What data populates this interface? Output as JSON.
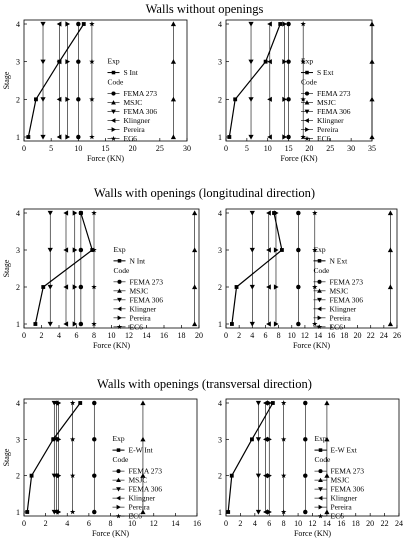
{
  "sections": [
    {
      "title": "Walls without openings"
    },
    {
      "title": "Walls with openings (longitudinal direction)"
    },
    {
      "title": "Walls with openings (transversal direction)"
    }
  ],
  "chart_data": [
    {
      "type": "line",
      "ylabel": "Stage",
      "xlabel": "Force (KN)",
      "xlim": [
        0,
        30
      ],
      "xticks": [
        0,
        5,
        10,
        15,
        20,
        25,
        30
      ],
      "ylim": [
        1,
        4
      ],
      "yticks": [
        1,
        2,
        3,
        4
      ],
      "legend_title": "Exp",
      "legend_code": "Code",
      "legend_position": "center-right",
      "exp": {
        "name": "S Int",
        "values": [
          [
            0.8,
            1
          ],
          [
            2.2,
            2
          ],
          [
            6.5,
            3
          ],
          [
            11,
            4
          ]
        ]
      },
      "codes": [
        {
          "name": "FEMA 273",
          "marker": "circle",
          "x": 10
        },
        {
          "name": "MSJC",
          "marker": "triangle-up",
          "x": 27.5
        },
        {
          "name": "FEMA 306",
          "marker": "triangle-down",
          "x": 3.5
        },
        {
          "name": "Klingner",
          "marker": "triangle-left",
          "x": 6.5
        },
        {
          "name": "Pereira",
          "marker": "triangle-right",
          "x": 8.0
        },
        {
          "name": "EC6",
          "marker": "star",
          "x": 12.5
        }
      ]
    },
    {
      "type": "line",
      "ylabel": "",
      "xlabel": "Force (KN)",
      "xlim": [
        0,
        35
      ],
      "xticks": [
        0,
        5,
        10,
        15,
        20,
        25,
        30,
        35
      ],
      "ylim": [
        1,
        4
      ],
      "yticks": [
        1,
        2,
        3,
        4
      ],
      "legend_title": "Exp",
      "legend_code": "Code",
      "legend_position": "center-right",
      "exp": {
        "name": "S Ext",
        "values": [
          [
            0.8,
            1
          ],
          [
            2.2,
            2
          ],
          [
            9.5,
            3
          ],
          [
            13,
            4
          ]
        ]
      },
      "codes": [
        {
          "name": "FEMA 273",
          "marker": "circle",
          "x": 15
        },
        {
          "name": "MSJC",
          "marker": "triangle-up",
          "x": 35
        },
        {
          "name": "FEMA 306",
          "marker": "triangle-down",
          "x": 6
        },
        {
          "name": "Klingner",
          "marker": "triangle-left",
          "x": 10.5
        },
        {
          "name": "Pereira",
          "marker": "triangle-right",
          "x": 14
        },
        {
          "name": "EC6",
          "marker": "star",
          "x": 18.5
        }
      ]
    },
    {
      "type": "line",
      "ylabel": "Stage",
      "xlabel": "Force (KN)",
      "xlim": [
        0,
        20
      ],
      "xticks": [
        0,
        2,
        4,
        6,
        8,
        10,
        12,
        14,
        16,
        18,
        20
      ],
      "ylim": [
        1,
        4
      ],
      "yticks": [
        1,
        2,
        3,
        4
      ],
      "legend_title": "Exp",
      "legend_code": "Code",
      "legend_position": "center-right",
      "exp": {
        "name": "N Int",
        "values": [
          [
            1.3,
            1
          ],
          [
            2.2,
            2
          ],
          [
            7.8,
            3
          ],
          [
            6.5,
            4
          ]
        ]
      },
      "codes": [
        {
          "name": "FEMA 273",
          "marker": "circle",
          "x": 6.5
        },
        {
          "name": "MSJC",
          "marker": "triangle-up",
          "x": 19.5
        },
        {
          "name": "FEMA 306",
          "marker": "triangle-down",
          "x": 3.0
        },
        {
          "name": "Klingner",
          "marker": "triangle-left",
          "x": 4.8
        },
        {
          "name": "Pereira",
          "marker": "triangle-right",
          "x": 5.8
        },
        {
          "name": "EC6",
          "marker": "star",
          "x": 8.0
        }
      ]
    },
    {
      "type": "line",
      "ylabel": "",
      "xlabel": "Force (KN)",
      "xlim": [
        0,
        26
      ],
      "xticks": [
        0,
        2,
        4,
        6,
        8,
        10,
        12,
        14,
        16,
        18,
        20,
        22,
        24,
        26
      ],
      "ylim": [
        1,
        4
      ],
      "yticks": [
        1,
        2,
        3,
        4
      ],
      "legend_title": "Exp",
      "legend_code": "Code",
      "legend_position": "center-right",
      "exp": {
        "name": "N Ext",
        "values": [
          [
            0.9,
            1
          ],
          [
            1.6,
            2
          ],
          [
            8.5,
            3
          ],
          [
            7.3,
            4
          ]
        ]
      },
      "codes": [
        {
          "name": "FEMA 273",
          "marker": "circle",
          "x": 11
        },
        {
          "name": "MSJC",
          "marker": "triangle-up",
          "x": 25
        },
        {
          "name": "FEMA 306",
          "marker": "triangle-down",
          "x": 4.0
        },
        {
          "name": "Klingner",
          "marker": "triangle-left",
          "x": 6.5
        },
        {
          "name": "Pereira",
          "marker": "triangle-right",
          "x": 7.6
        },
        {
          "name": "EC6",
          "marker": "star",
          "x": 13.5
        }
      ]
    },
    {
      "type": "line",
      "ylabel": "Stage",
      "xlabel": "Force (KN)",
      "xlim": [
        0,
        16
      ],
      "xticks": [
        0,
        2,
        4,
        6,
        8,
        10,
        12,
        14,
        16
      ],
      "ylim": [
        1,
        4
      ],
      "yticks": [
        1,
        2,
        3,
        4
      ],
      "legend_title": "Exp",
      "legend_code": "Code",
      "legend_position": "center-right",
      "exp": {
        "name": "E-W Int",
        "values": [
          [
            0.3,
            1
          ],
          [
            0.7,
            2
          ],
          [
            2.7,
            3
          ],
          [
            5.2,
            4
          ]
        ]
      },
      "codes": [
        {
          "name": "FEMA 273",
          "marker": "circle",
          "x": 6.5
        },
        {
          "name": "MSJC",
          "marker": "triangle-up",
          "x": 11
        },
        {
          "name": "FEMA 306",
          "marker": "triangle-down",
          "x": 2.8
        },
        {
          "name": "Klingner",
          "marker": "triangle-left",
          "x": 3.0
        },
        {
          "name": "Pereira",
          "marker": "triangle-right",
          "x": 3.2
        },
        {
          "name": "EC6",
          "marker": "star",
          "x": 4.5
        }
      ]
    },
    {
      "type": "line",
      "ylabel": "",
      "xlabel": "Force (KN)",
      "xlim": [
        0,
        24
      ],
      "xticks": [
        0,
        2,
        4,
        6,
        8,
        10,
        12,
        14,
        16,
        18,
        20,
        22,
        24
      ],
      "ylim": [
        1,
        4
      ],
      "yticks": [
        1,
        2,
        3,
        4
      ],
      "legend_title": "Exp",
      "legend_code": "Code",
      "legend_position": "center-right",
      "exp": {
        "name": "E-W Ext",
        "values": [
          [
            0.3,
            1
          ],
          [
            0.8,
            2
          ],
          [
            3.6,
            3
          ],
          [
            6.5,
            4
          ]
        ]
      },
      "codes": [
        {
          "name": "FEMA 273",
          "marker": "circle",
          "x": 11
        },
        {
          "name": "MSJC",
          "marker": "triangle-up",
          "x": 14
        },
        {
          "name": "FEMA 306",
          "marker": "triangle-down",
          "x": 4.5
        },
        {
          "name": "Klingner",
          "marker": "triangle-left",
          "x": 5.5
        },
        {
          "name": "Pereira",
          "marker": "triangle-right",
          "x": 6.0
        },
        {
          "name": "EC6",
          "marker": "star",
          "x": 8.0
        }
      ]
    }
  ]
}
